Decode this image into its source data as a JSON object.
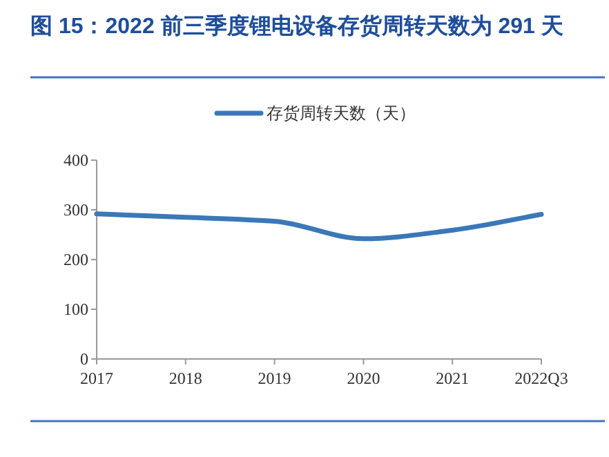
{
  "chart_data": {
    "type": "line",
    "title": "图 15：2022 前三季度锂电设备存货周转天数为 291 天",
    "categories": [
      "2017",
      "2018",
      "2019",
      "2020",
      "2021",
      "2022Q3"
    ],
    "series": [
      {
        "name": "存货周转天数（天）",
        "color": "#3a78b8",
        "values": [
          292,
          285,
          277,
          242,
          259,
          291
        ]
      }
    ],
    "ylim": [
      0,
      400
    ],
    "yticks": [
      0,
      100,
      200,
      300,
      400
    ],
    "legend": "top",
    "grid": false,
    "marker": "none",
    "line_style": "solid"
  }
}
